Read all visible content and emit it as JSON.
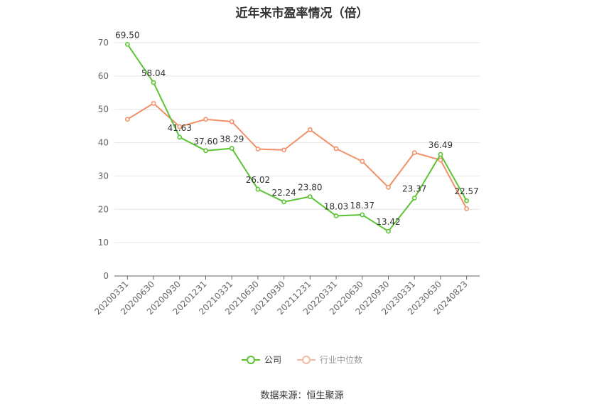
{
  "chart_data": {
    "type": "line",
    "title": "近年来市盈率情况（倍）",
    "categories": [
      "20200331",
      "20200630",
      "20200930",
      "20201231",
      "20210331",
      "20210630",
      "20210930",
      "20211231",
      "20220331",
      "20220630",
      "20220930",
      "20230331",
      "20230630",
      "20240823"
    ],
    "ylim": [
      0,
      70
    ],
    "yticks": [
      0,
      10,
      20,
      30,
      40,
      50,
      60,
      70
    ],
    "grid": true,
    "legend_position": "bottom",
    "series": [
      {
        "name": "公司",
        "color": "#5cc433",
        "values": [
          69.5,
          58.04,
          41.63,
          37.6,
          38.29,
          26.02,
          22.24,
          23.8,
          18.03,
          18.37,
          13.42,
          23.37,
          36.49,
          22.57
        ],
        "labels": [
          "69.50",
          "58.04",
          "41.63",
          "37.60",
          "38.29",
          "26.02",
          "22.24",
          "23.80",
          "18.03",
          "18.37",
          "13.42",
          "23.37",
          "36.49",
          "22.57"
        ]
      },
      {
        "name": "行业中位数",
        "color": "#f29068",
        "values": [
          47.0,
          51.8,
          44.8,
          47.0,
          46.3,
          38.1,
          37.8,
          43.9,
          38.2,
          34.4,
          26.6,
          37.0,
          34.8,
          20.2
        ]
      }
    ]
  },
  "source": "数据来源：恒生聚源"
}
